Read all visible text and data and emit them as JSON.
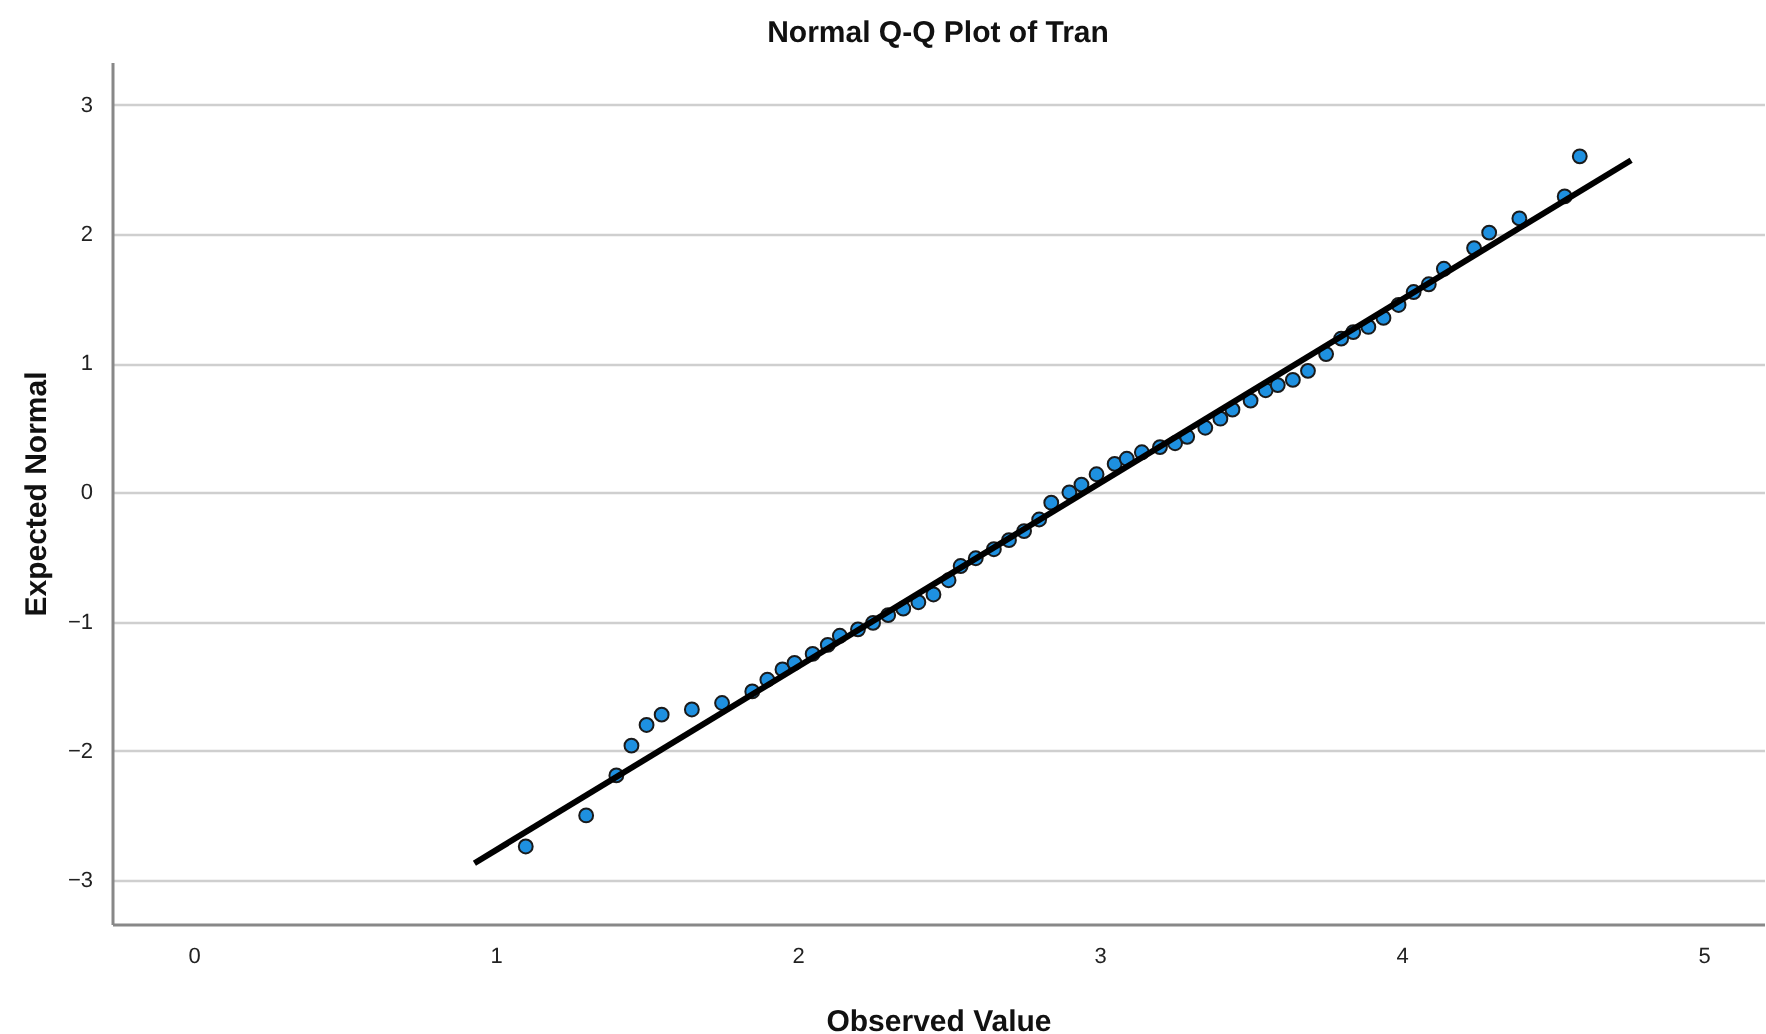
{
  "chart_data": {
    "type": "scatter",
    "title": "Normal Q-Q Plot of Tran",
    "xlabel": "Observed Value",
    "ylabel": "Expected Normal",
    "xlim": [
      -0.27,
      5.2
    ],
    "xticks": [
      0,
      1,
      2,
      3,
      4,
      5
    ],
    "ylim": [
      -3.34,
      3.33
    ],
    "yticks": [
      -3,
      -2,
      -1,
      0,
      1,
      2,
      3
    ],
    "grid": "y",
    "series": [
      {
        "marker": "circle",
        "color": "#1e90e0",
        "x": [
          1.1,
          1.3,
          1.4,
          1.45,
          1.5,
          1.55,
          1.65,
          1.75,
          1.85,
          1.9,
          1.95,
          1.99,
          2.05,
          2.1,
          2.14,
          2.2,
          2.25,
          2.3,
          2.35,
          2.4,
          2.45,
          2.5,
          2.54,
          2.59,
          2.65,
          2.7,
          2.75,
          2.8,
          2.84,
          2.9,
          2.94,
          2.99,
          3.05,
          3.09,
          3.14,
          3.2,
          3.25,
          3.29,
          3.35,
          3.4,
          3.44,
          3.5,
          3.55,
          3.59,
          3.64,
          3.69,
          3.75,
          3.8,
          3.84,
          3.89,
          3.94,
          3.99,
          4.04,
          4.09,
          4.14,
          4.24,
          4.29,
          4.39,
          4.54,
          4.59
        ],
        "values": [
          -2.74,
          -2.5,
          -2.19,
          -1.96,
          -1.8,
          -1.72,
          -1.68,
          -1.63,
          -1.54,
          -1.45,
          -1.37,
          -1.32,
          -1.25,
          -1.18,
          -1.11,
          -1.06,
          -1.01,
          -0.95,
          -0.9,
          -0.85,
          -0.79,
          -0.68,
          -0.57,
          -0.51,
          -0.44,
          -0.37,
          -0.3,
          -0.21,
          -0.08,
          0.0,
          0.06,
          0.14,
          0.22,
          0.26,
          0.31,
          0.35,
          0.38,
          0.43,
          0.5,
          0.57,
          0.64,
          0.71,
          0.79,
          0.83,
          0.87,
          0.94,
          1.07,
          1.19,
          1.24,
          1.28,
          1.35,
          1.45,
          1.55,
          1.61,
          1.73,
          1.89,
          2.01,
          2.12,
          2.29,
          2.6
        ]
      },
      {
        "type": "line",
        "marker": "none",
        "line_style": "solid",
        "color": "#000000",
        "x": [
          0.93,
          4.76
        ],
        "values": [
          -2.87,
          2.57
        ]
      }
    ]
  }
}
